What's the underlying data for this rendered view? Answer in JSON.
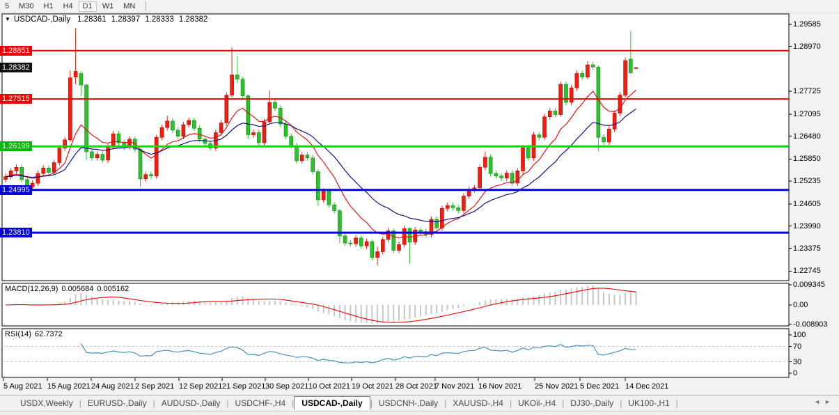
{
  "toolbar": {
    "buttons": [
      "5",
      "M30",
      "H1",
      "H4",
      "D1",
      "W1",
      "MN"
    ],
    "active": "D1"
  },
  "chart": {
    "collapse_icon": "▼",
    "title": {
      "symbol": "USDCAD-,Daily",
      "open": "1.28361",
      "high": "1.28397",
      "low": "1.28333",
      "close": "1.28382"
    }
  },
  "macd_panel": {
    "label": "MACD(12,26,9)",
    "value_main": "0.005684",
    "value_signal": "0.005162"
  },
  "rsi_panel": {
    "label": "RSI(14)",
    "value": "62.7372"
  },
  "tabbar": {
    "tabs": [
      "USDX,Weekly",
      "EURUSD-,Daily",
      "AUDUSD-,Daily",
      "USDCHF-,H4",
      "USDCAD-,Daily",
      "USDCNH-,Daily",
      "XAUUSD-,H4",
      "UKOil-,H4",
      "DJ30-,Daily",
      "UK100-,H1"
    ],
    "active": "USDCAD-,Daily",
    "scroll_left_icon": "◄",
    "scroll_right_icon": "►"
  },
  "chart_data": {
    "type": "candlestick",
    "title": "USDCAD-,Daily",
    "up_color": "#ee1f0f",
    "up_border": "#c00000",
    "down_color": "#2fbf2f",
    "down_border": "#0b8f0b",
    "ylim": [
      1.2248,
      1.2987
    ],
    "price_axis_ticks": [
      "1.29585",
      "1.28970",
      "1.27725",
      "1.27095",
      "1.26480",
      "1.25850",
      "1.25235",
      "1.24605",
      "1.23990",
      "1.23375",
      "1.22745"
    ],
    "price_badges": [
      {
        "price": 1.28851,
        "text": "1.28851",
        "bg": "#ee0000"
      },
      {
        "price": 1.28382,
        "text": "1.28382",
        "bg": "#111111"
      },
      {
        "price": 1.27515,
        "text": "1.27515",
        "bg": "#ee0000"
      },
      {
        "price": 1.26199,
        "text": "1.26199",
        "bg": "#00bb00"
      },
      {
        "price": 1.24995,
        "text": "1.24995",
        "bg": "#0000dd"
      },
      {
        "price": 1.2381,
        "text": "1.23810",
        "bg": "#0000dd"
      }
    ],
    "hlines": [
      {
        "price": 1.28851,
        "color": "#ee0000",
        "width": 2
      },
      {
        "price": 1.27515,
        "color": "#ee0000",
        "width": 2
      },
      {
        "price": 1.26199,
        "color": "#00dd00",
        "width": 3
      },
      {
        "price": 1.24995,
        "color": "#0000ee",
        "width": 3
      },
      {
        "price": 1.2381,
        "color": "#0000ee",
        "width": 3
      }
    ],
    "x_labels": [
      "5 Aug 2021",
      "15 Aug 2021",
      "24 Aug 2021",
      "2 Sep 2021",
      "12 Sep 2021",
      "21 Sep 2021",
      "30 Sep 2021",
      "10 Oct 2021",
      "19 Oct 2021",
      "28 Oct 2021",
      "7 Nov 2021",
      "16 Nov 2021",
      "25 Nov 2021",
      "5 Dec 2021",
      "14 Dec 2021"
    ],
    "moving_averages": [
      {
        "period": 10,
        "method": "ema",
        "color": "#ee0000"
      },
      {
        "period": 22,
        "method": "ema",
        "color": "#000080"
      }
    ],
    "candles": [
      [
        1.2528,
        1.2544,
        1.252,
        1.2536
      ],
      [
        1.2536,
        1.256,
        1.2528,
        1.2552
      ],
      [
        1.2552,
        1.257,
        1.2544,
        1.2562
      ],
      [
        1.2562,
        1.257,
        1.252,
        1.2528
      ],
      [
        1.2528,
        1.2536,
        1.2496,
        1.2508
      ],
      [
        1.2508,
        1.2526,
        1.25,
        1.2518
      ],
      [
        1.2518,
        1.2553,
        1.251,
        1.2545
      ],
      [
        1.2545,
        1.2568,
        1.2537,
        1.256
      ],
      [
        1.256,
        1.2568,
        1.254,
        1.2548
      ],
      [
        1.2548,
        1.2583,
        1.254,
        1.2575
      ],
      [
        1.2575,
        1.2623,
        1.2567,
        1.2615
      ],
      [
        1.2615,
        1.2646,
        1.2607,
        1.2638
      ],
      [
        1.2638,
        1.283,
        1.2632,
        1.281
      ],
      [
        1.2812,
        1.2948,
        1.2792,
        1.2828
      ],
      [
        1.2822,
        1.2828,
        1.276,
        1.279
      ],
      [
        1.279,
        1.2794,
        1.2582,
        1.2605
      ],
      [
        1.2605,
        1.2613,
        1.258,
        1.2588
      ],
      [
        1.2588,
        1.2606,
        1.258,
        1.2598
      ],
      [
        1.2598,
        1.2606,
        1.2574,
        1.2582
      ],
      [
        1.2582,
        1.2628,
        1.2574,
        1.262
      ],
      [
        1.262,
        1.2663,
        1.2612,
        1.2655
      ],
      [
        1.2655,
        1.2663,
        1.2622,
        1.263
      ],
      [
        1.263,
        1.2638,
        1.261,
        1.2618
      ],
      [
        1.2618,
        1.2648,
        1.261,
        1.264
      ],
      [
        1.264,
        1.2648,
        1.2604,
        1.2612
      ],
      [
        1.2612,
        1.2616,
        1.2508,
        1.253
      ],
      [
        1.253,
        1.255,
        1.2522,
        1.2542
      ],
      [
        1.2542,
        1.255,
        1.253,
        1.2538
      ],
      [
        1.2538,
        1.2652,
        1.253,
        1.2645
      ],
      [
        1.2645,
        1.268,
        1.2637,
        1.2672
      ],
      [
        1.2672,
        1.2705,
        1.2664,
        1.269
      ],
      [
        1.269,
        1.2698,
        1.2657,
        1.2665
      ],
      [
        1.2665,
        1.2673,
        1.264,
        1.2648
      ],
      [
        1.2648,
        1.2688,
        1.264,
        1.268
      ],
      [
        1.268,
        1.27,
        1.2672,
        1.2692
      ],
      [
        1.2692,
        1.27,
        1.2662,
        1.267
      ],
      [
        1.267,
        1.2678,
        1.2632,
        1.264
      ],
      [
        1.264,
        1.2648,
        1.262,
        1.2628
      ],
      [
        1.2628,
        1.2636,
        1.2607,
        1.2615
      ],
      [
        1.2615,
        1.2666,
        1.2607,
        1.2658
      ],
      [
        1.2658,
        1.2693,
        1.265,
        1.2685
      ],
      [
        1.2685,
        1.277,
        1.2677,
        1.2762
      ],
      [
        1.2762,
        1.2895,
        1.2756,
        1.2818
      ],
      [
        1.2818,
        1.287,
        1.2796,
        1.2806
      ],
      [
        1.2806,
        1.2814,
        1.2752,
        1.276
      ],
      [
        1.276,
        1.2764,
        1.264,
        1.2652
      ],
      [
        1.2652,
        1.2666,
        1.2644,
        1.2658
      ],
      [
        1.2658,
        1.2666,
        1.2622,
        1.263
      ],
      [
        1.263,
        1.2696,
        1.2622,
        1.2688
      ],
      [
        1.2688,
        1.2775,
        1.2682,
        1.2742
      ],
      [
        1.2742,
        1.275,
        1.2718,
        1.2726
      ],
      [
        1.2726,
        1.2734,
        1.2674,
        1.2682
      ],
      [
        1.2682,
        1.269,
        1.264,
        1.2648
      ],
      [
        1.2648,
        1.2656,
        1.2614,
        1.2622
      ],
      [
        1.2622,
        1.263,
        1.2572,
        1.258
      ],
      [
        1.258,
        1.2604,
        1.2572,
        1.2596
      ],
      [
        1.2596,
        1.2604,
        1.258,
        1.2588
      ],
      [
        1.2588,
        1.2596,
        1.2542,
        1.255
      ],
      [
        1.255,
        1.2556,
        1.2455,
        1.2472
      ],
      [
        1.2472,
        1.2504,
        1.2464,
        1.2496
      ],
      [
        1.2496,
        1.2504,
        1.245,
        1.2458
      ],
      [
        1.2458,
        1.2466,
        1.2434,
        1.2442
      ],
      [
        1.2442,
        1.2446,
        1.2352,
        1.2372
      ],
      [
        1.2372,
        1.238,
        1.2344,
        1.2352
      ],
      [
        1.2352,
        1.236,
        1.2342,
        1.235
      ],
      [
        1.235,
        1.2374,
        1.2342,
        1.2366
      ],
      [
        1.2366,
        1.2374,
        1.2336,
        1.2344
      ],
      [
        1.2344,
        1.2364,
        1.2336,
        1.2356
      ],
      [
        1.2356,
        1.2362,
        1.2304,
        1.2312
      ],
      [
        1.2312,
        1.2342,
        1.229,
        1.2328
      ],
      [
        1.2328,
        1.237,
        1.232,
        1.2362
      ],
      [
        1.2362,
        1.2394,
        1.2354,
        1.2386
      ],
      [
        1.2386,
        1.2392,
        1.2324,
        1.2332
      ],
      [
        1.2332,
        1.2356,
        1.2324,
        1.2348
      ],
      [
        1.2348,
        1.24,
        1.234,
        1.2392
      ],
      [
        1.2392,
        1.2396,
        1.2295,
        1.2355
      ],
      [
        1.2355,
        1.2396,
        1.2347,
        1.2388
      ],
      [
        1.2388,
        1.2396,
        1.2376,
        1.2384
      ],
      [
        1.2384,
        1.2392,
        1.2368,
        1.2376
      ],
      [
        1.2376,
        1.2426,
        1.2368,
        1.2418
      ],
      [
        1.2418,
        1.2426,
        1.2386,
        1.2394
      ],
      [
        1.2394,
        1.2456,
        1.2386,
        1.2448
      ],
      [
        1.2448,
        1.2464,
        1.244,
        1.2456
      ],
      [
        1.2456,
        1.2464,
        1.2442,
        1.245
      ],
      [
        1.245,
        1.2458,
        1.2434,
        1.2442
      ],
      [
        1.2442,
        1.249,
        1.2434,
        1.2482
      ],
      [
        1.2482,
        1.2508,
        1.2474,
        1.25
      ],
      [
        1.25,
        1.2513,
        1.2492,
        1.2505
      ],
      [
        1.2505,
        1.257,
        1.2497,
        1.2562
      ],
      [
        1.2562,
        1.2605,
        1.2554,
        1.259
      ],
      [
        1.259,
        1.2598,
        1.2537,
        1.2545
      ],
      [
        1.2545,
        1.2553,
        1.253,
        1.2538
      ],
      [
        1.2538,
        1.2546,
        1.2524,
        1.2532
      ],
      [
        1.2532,
        1.2554,
        1.2524,
        1.2546
      ],
      [
        1.2546,
        1.2554,
        1.251,
        1.2518
      ],
      [
        1.2518,
        1.256,
        1.251,
        1.2552
      ],
      [
        1.2552,
        1.2624,
        1.2544,
        1.2616
      ],
      [
        1.2616,
        1.2624,
        1.258,
        1.2588
      ],
      [
        1.2588,
        1.266,
        1.258,
        1.2652
      ],
      [
        1.2652,
        1.266,
        1.2637,
        1.2645
      ],
      [
        1.2645,
        1.271,
        1.2637,
        1.2702
      ],
      [
        1.2702,
        1.2726,
        1.2694,
        1.2718
      ],
      [
        1.2718,
        1.2726,
        1.27,
        1.2708
      ],
      [
        1.2708,
        1.28,
        1.2702,
        1.2792
      ],
      [
        1.2792,
        1.28,
        1.2734,
        1.2742
      ],
      [
        1.2742,
        1.279,
        1.2734,
        1.2782
      ],
      [
        1.2782,
        1.283,
        1.2774,
        1.2822
      ],
      [
        1.2822,
        1.283,
        1.2804,
        1.2812
      ],
      [
        1.2812,
        1.2856,
        1.2806,
        1.2846
      ],
      [
        1.2846,
        1.2854,
        1.2832,
        1.284
      ],
      [
        1.284,
        1.2844,
        1.2606,
        1.2645
      ],
      [
        1.2645,
        1.2653,
        1.2624,
        1.2632
      ],
      [
        1.2632,
        1.2676,
        1.2624,
        1.2668
      ],
      [
        1.2668,
        1.272,
        1.266,
        1.2712
      ],
      [
        1.2712,
        1.277,
        1.2704,
        1.2762
      ],
      [
        1.2762,
        1.2866,
        1.2756,
        1.2858
      ],
      [
        1.2862,
        1.294,
        1.282,
        1.2824
      ],
      [
        1.28361,
        1.28397,
        1.28333,
        1.28382
      ]
    ],
    "macd": {
      "fast": 12,
      "slow": 26,
      "signal": 9,
      "main_value": 0.005684,
      "signal_value": 0.005162,
      "axis_ticks": [
        {
          "value": 0.009345,
          "text": "0.009345"
        },
        {
          "value": 0,
          "text": "0.00"
        },
        {
          "value": -0.008903,
          "text": "-0.008903"
        }
      ],
      "bar_color": "#c6c6c6",
      "line_color": "#ee0000"
    },
    "rsi": {
      "period": 14,
      "value": 62.7372,
      "axis_ticks": [
        {
          "value": 100,
          "text": "100"
        },
        {
          "value": 70,
          "text": "70"
        },
        {
          "value": 30,
          "text": "30"
        },
        {
          "value": 0,
          "text": "0"
        }
      ],
      "levels": [
        70,
        30
      ],
      "line_color": "#4a90c4",
      "level_color": "#bdbdbd"
    }
  }
}
